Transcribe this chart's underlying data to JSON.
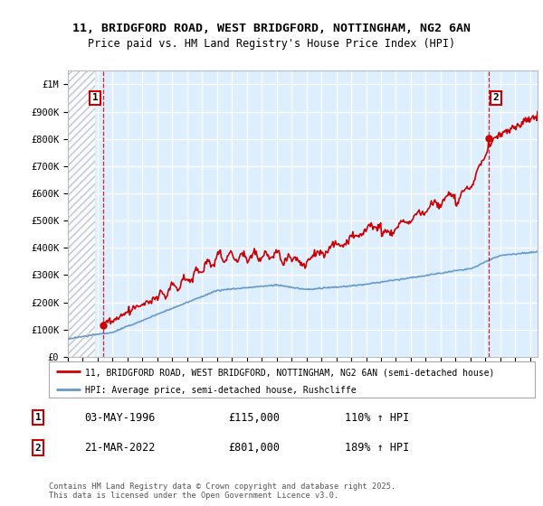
{
  "title_line1": "11, BRIDGFORD ROAD, WEST BRIDGFORD, NOTTINGHAM, NG2 6AN",
  "title_line2": "Price paid vs. HM Land Registry's House Price Index (HPI)",
  "ylim": [
    0,
    1050000
  ],
  "yticks": [
    0,
    100000,
    200000,
    300000,
    400000,
    500000,
    600000,
    700000,
    800000,
    900000,
    1000000
  ],
  "ytick_labels": [
    "£0",
    "£100K",
    "£200K",
    "£300K",
    "£400K",
    "£500K",
    "£600K",
    "£700K",
    "£800K",
    "£900K",
    "£1M"
  ],
  "xlim_start": 1994.0,
  "xlim_end": 2025.5,
  "transaction1_date": 1996.34,
  "transaction1_price": 115000,
  "transaction2_date": 2022.22,
  "transaction2_price": 801000,
  "legend_line1": "11, BRIDGFORD ROAD, WEST BRIDGFORD, NOTTINGHAM, NG2 6AN (semi-detached house)",
  "legend_line2": "HPI: Average price, semi-detached house, Rushcliffe",
  "annotation1_date": "03-MAY-1996",
  "annotation1_price": "£115,000",
  "annotation1_hpi": "110% ↑ HPI",
  "annotation2_date": "21-MAR-2022",
  "annotation2_price": "£801,000",
  "annotation2_hpi": "189% ↑ HPI",
  "footer": "Contains HM Land Registry data © Crown copyright and database right 2025.\nThis data is licensed under the Open Government Licence v3.0.",
  "hpi_color": "#6699cc",
  "price_color": "#cc0000",
  "bg_color": "#ddeeff",
  "grid_color": "#ffffff"
}
